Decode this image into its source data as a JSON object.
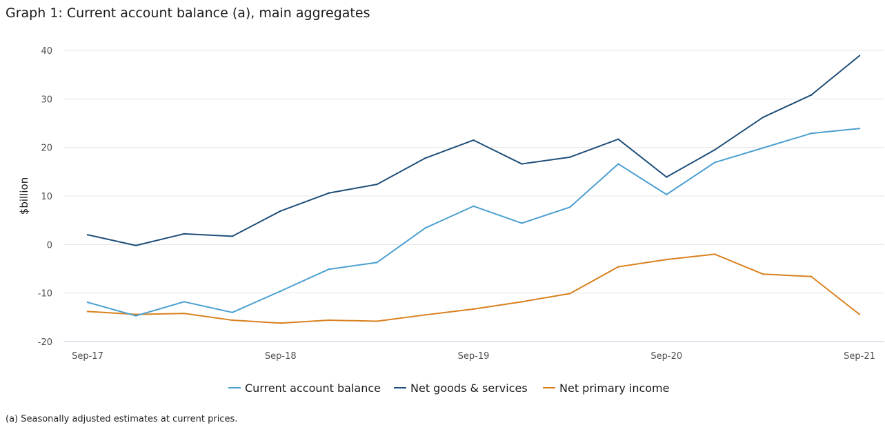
{
  "title": "Graph 1: Current account balance (a), main aggregates",
  "footnote": "(a) Seasonally adjusted estimates at current prices.",
  "colors": {
    "cab": "#4a9fd0",
    "ngs": "#1f4e79",
    "npi": "#d9801e",
    "grid": "#e6e6e6",
    "axis": "#c8c8dc"
  },
  "chart_data": {
    "type": "line",
    "title": "Graph 1: Current account balance (a), main aggregates",
    "xlabel": "",
    "ylabel": "$billion",
    "ylim": [
      -20,
      40
    ],
    "yticks": [
      -20,
      -10,
      0,
      10,
      20,
      30,
      40
    ],
    "categories": [
      "Sep-17",
      "Dec-17",
      "Mar-18",
      "Jun-18",
      "Sep-18",
      "Dec-18",
      "Mar-19",
      "Jun-19",
      "Sep-19",
      "Dec-19",
      "Mar-20",
      "Jun-20",
      "Sep-20",
      "Dec-20",
      "Mar-21",
      "Jun-21",
      "Sep-21"
    ],
    "xtick_labels": [
      "Sep-17",
      "Sep-18",
      "Sep-19",
      "Sep-20",
      "Sep-21"
    ],
    "xtick_indices": [
      0,
      4,
      8,
      12,
      16
    ],
    "legend_position": "bottom-center",
    "series": [
      {
        "key": "cab",
        "name": "Current account balance",
        "values": [
          -11.9,
          -14.7,
          -11.8,
          -14.0,
          -9.6,
          -5.1,
          -3.7,
          3.4,
          7.9,
          4.4,
          7.7,
          16.6,
          10.3,
          16.9,
          19.9,
          22.9,
          23.9
        ]
      },
      {
        "key": "ngs",
        "name": "Net goods & services",
        "values": [
          2.0,
          -0.2,
          2.2,
          1.7,
          6.9,
          10.6,
          12.4,
          17.8,
          21.5,
          16.6,
          18.0,
          21.7,
          13.9,
          19.5,
          26.2,
          30.8,
          38.9
        ]
      },
      {
        "key": "npi",
        "name": "Net primary income",
        "values": [
          -13.8,
          -14.4,
          -14.2,
          -15.6,
          -16.2,
          -15.6,
          -15.8,
          -14.5,
          -13.3,
          -11.8,
          -10.1,
          -4.6,
          -3.1,
          -2.0,
          -6.1,
          -6.6,
          -14.4
        ]
      }
    ]
  }
}
